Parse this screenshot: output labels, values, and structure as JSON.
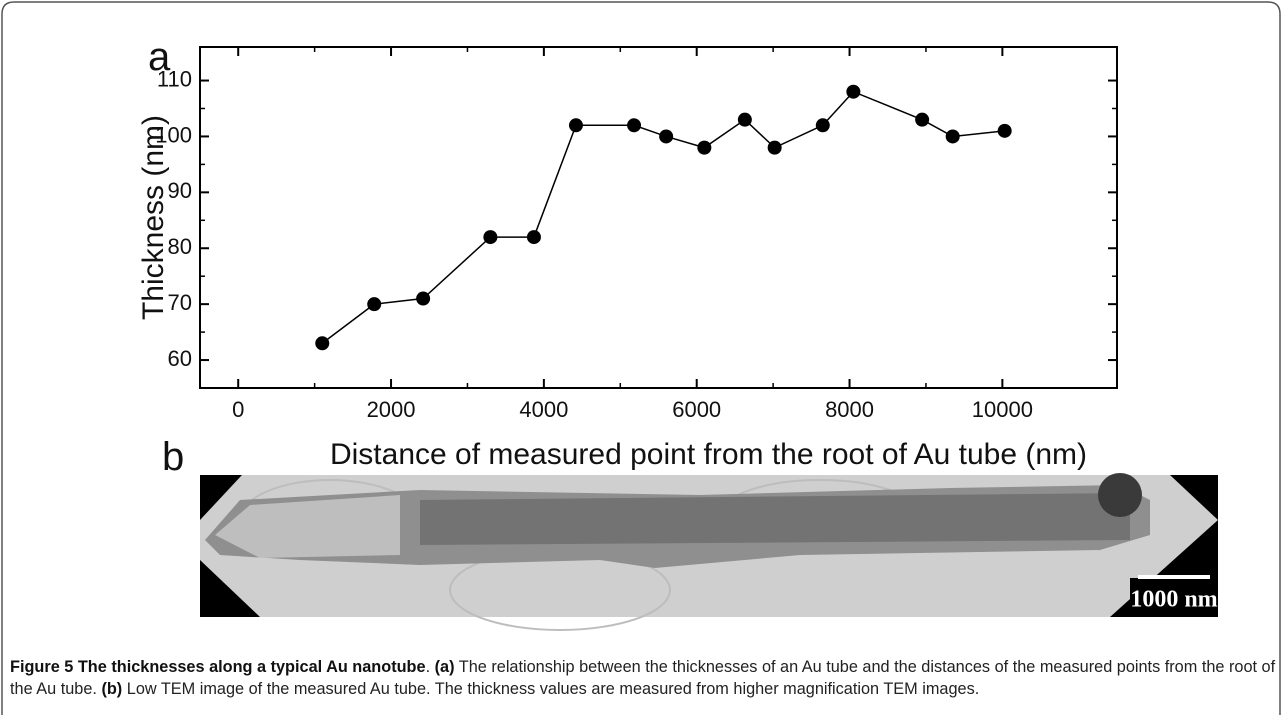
{
  "chart_data": {
    "type": "line",
    "x_label": "Distance of measured point from the root of Au tube (nm)",
    "y_label": "Thickness (nm)",
    "x": [
      1100,
      1780,
      2420,
      3300,
      3870,
      4420,
      5180,
      5600,
      6100,
      6630,
      7020,
      7650,
      8050,
      8950,
      9350,
      10030
    ],
    "series": [
      {
        "color": "#000000",
        "values": [
          63,
          70,
          71,
          82,
          82,
          102,
          102,
          100,
          98,
          103,
          98,
          102,
          108,
          103,
          100,
          101
        ]
      }
    ],
    "xlim": [
      -500,
      11500
    ],
    "ylim": [
      55,
      116
    ],
    "xticks": [
      0,
      2000,
      4000,
      6000,
      8000,
      10000
    ],
    "yticks": [
      60,
      70,
      80,
      90,
      100,
      110
    ],
    "grid": false
  },
  "panel_labels": [
    "a",
    "b"
  ],
  "image": {
    "scale_bar": "1000 nm"
  },
  "caption": [
    {
      "text": "Figure 5 The thicknesses along a typical Au nanotube",
      "bold": true
    },
    {
      "text": ". ",
      "bold": false
    },
    {
      "text": "(a)",
      "bold": true
    },
    {
      "text": " The relationship between the thicknesses of an Au tube and the distances of the measured points from the root of the Au tube. ",
      "bold": false
    },
    {
      "text": "(b)",
      "bold": true
    },
    {
      "text": " Low TEM image of the measured Au tube. The thickness values are measured from higher magnification TEM images.",
      "bold": false
    }
  ]
}
